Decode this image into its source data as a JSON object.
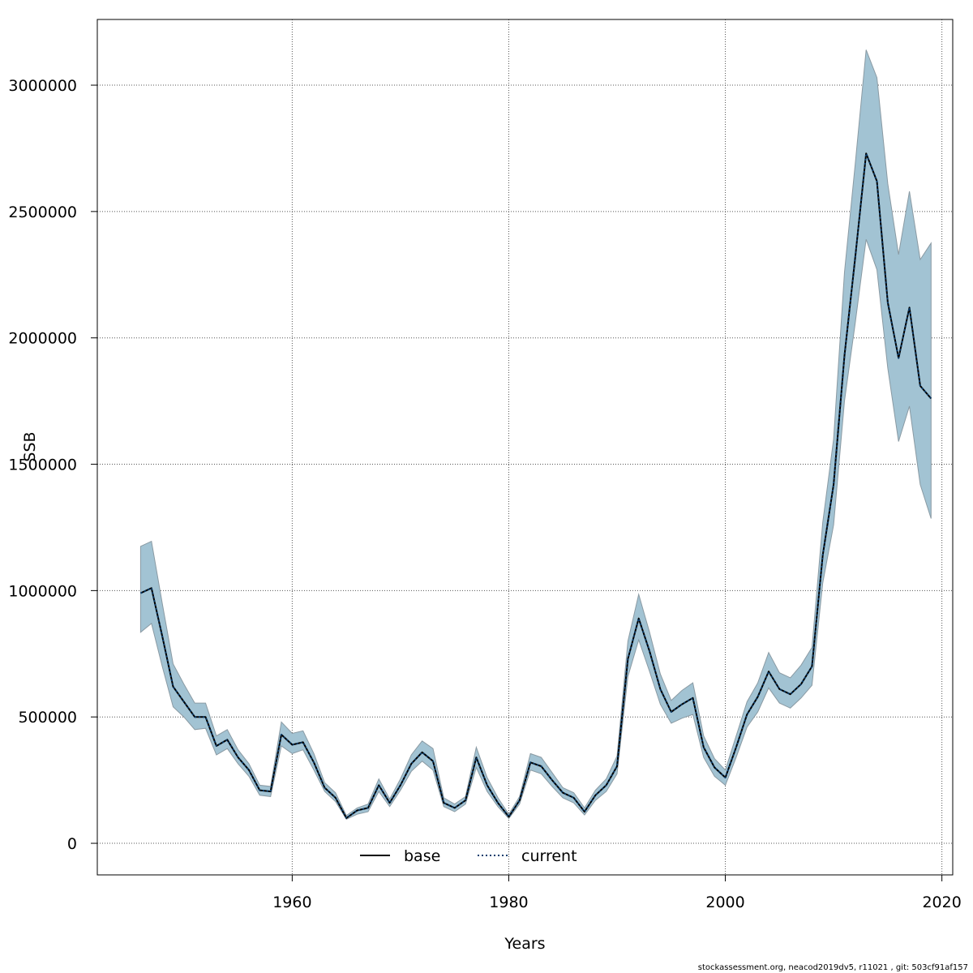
{
  "chart_data": {
    "type": "area",
    "xlabel": "Years",
    "ylabel": "SSB",
    "xlim": [
      1942,
      2021
    ],
    "ylim": [
      -125000,
      3260000
    ],
    "xticks": [
      1960,
      1980,
      2000,
      2020
    ],
    "yticks": [
      0,
      500000,
      1000000,
      1500000,
      2000000,
      2500000,
      3000000
    ],
    "grid": true,
    "legend_position": "bottom-center",
    "colors": {
      "band": "#a2c3d3",
      "band_edge": "#8a9aa3",
      "base": "#000000",
      "current": "#0b3e6e",
      "grid": "#555555"
    },
    "years": [
      1946,
      1947,
      1948,
      1949,
      1950,
      1951,
      1952,
      1953,
      1954,
      1955,
      1956,
      1957,
      1958,
      1959,
      1960,
      1961,
      1962,
      1963,
      1964,
      1965,
      1966,
      1967,
      1968,
      1969,
      1970,
      1971,
      1972,
      1973,
      1974,
      1975,
      1976,
      1977,
      1978,
      1979,
      1980,
      1981,
      1982,
      1983,
      1984,
      1985,
      1986,
      1987,
      1988,
      1989,
      1990,
      1991,
      1992,
      1993,
      1994,
      1995,
      1996,
      1997,
      1998,
      1999,
      2000,
      2001,
      2002,
      2003,
      2004,
      2005,
      2006,
      2007,
      2008,
      2009,
      2010,
      2011,
      2012,
      2013,
      2014,
      2015,
      2016,
      2017,
      2018,
      2019
    ],
    "series": [
      {
        "name": "base",
        "style": "solid",
        "values": [
          990000,
          1010000,
          820000,
          620000,
          560000,
          500000,
          500000,
          385000,
          410000,
          340000,
          290000,
          210000,
          205000,
          430000,
          390000,
          400000,
          320000,
          220000,
          180000,
          100000,
          130000,
          140000,
          230000,
          160000,
          230000,
          315000,
          360000,
          325000,
          160000,
          140000,
          170000,
          340000,
          230000,
          160000,
          105000,
          170000,
          320000,
          305000,
          250000,
          200000,
          180000,
          125000,
          190000,
          230000,
          305000,
          730000,
          890000,
          760000,
          610000,
          520000,
          550000,
          575000,
          380000,
          300000,
          260000,
          380000,
          510000,
          580000,
          680000,
          610000,
          590000,
          630000,
          700000,
          1140000,
          1420000,
          1930000,
          2320000,
          2730000,
          2620000,
          2140000,
          1920000,
          2120000,
          1810000,
          1760000
        ]
      },
      {
        "name": "current",
        "style": "dotted",
        "values": [
          990000,
          1010000,
          820000,
          620000,
          560000,
          500000,
          500000,
          385000,
          410000,
          340000,
          290000,
          210000,
          205000,
          430000,
          390000,
          400000,
          320000,
          220000,
          180000,
          100000,
          130000,
          140000,
          230000,
          160000,
          230000,
          315000,
          360000,
          325000,
          160000,
          140000,
          170000,
          340000,
          230000,
          160000,
          105000,
          170000,
          320000,
          305000,
          250000,
          200000,
          180000,
          125000,
          190000,
          230000,
          305000,
          730000,
          890000,
          760000,
          610000,
          520000,
          550000,
          575000,
          380000,
          300000,
          260000,
          380000,
          510000,
          580000,
          680000,
          610000,
          590000,
          630000,
          700000,
          1140000,
          1420000,
          1930000,
          2320000,
          2730000,
          2620000,
          2140000,
          1920000,
          2120000,
          1810000,
          1760000
        ]
      }
    ],
    "band_lower": [
      835000,
      870000,
      700000,
      540000,
      500000,
      450000,
      455000,
      350000,
      375000,
      315000,
      265000,
      190000,
      185000,
      385000,
      355000,
      370000,
      290000,
      205000,
      165000,
      95000,
      115000,
      125000,
      205000,
      145000,
      210000,
      285000,
      325000,
      290000,
      145000,
      125000,
      155000,
      300000,
      205000,
      145000,
      98000,
      155000,
      290000,
      275000,
      225000,
      180000,
      160000,
      112000,
      170000,
      205000,
      275000,
      660000,
      805000,
      680000,
      550000,
      475000,
      495000,
      510000,
      340000,
      265000,
      230000,
      340000,
      460000,
      520000,
      615000,
      555000,
      535000,
      575000,
      625000,
      1030000,
      1260000,
      1750000,
      2060000,
      2390000,
      2270000,
      1880000,
      1590000,
      1730000,
      1420000,
      1285000
    ],
    "band_upper": [
      1175000,
      1195000,
      950000,
      710000,
      630000,
      555000,
      555000,
      425000,
      450000,
      370000,
      315000,
      230000,
      225000,
      480000,
      435000,
      445000,
      355000,
      240000,
      200000,
      110000,
      140000,
      155000,
      255000,
      175000,
      255000,
      350000,
      405000,
      375000,
      180000,
      155000,
      185000,
      380000,
      260000,
      180000,
      115000,
      185000,
      355000,
      340000,
      280000,
      220000,
      200000,
      140000,
      210000,
      255000,
      345000,
      800000,
      985000,
      835000,
      670000,
      565000,
      605000,
      635000,
      425000,
      335000,
      290000,
      425000,
      560000,
      635000,
      755000,
      675000,
      655000,
      705000,
      775000,
      1270000,
      1600000,
      2260000,
      2690000,
      3140000,
      3030000,
      2610000,
      2330000,
      2580000,
      2310000,
      2375000
    ]
  },
  "legend": {
    "items": [
      {
        "label": "base",
        "style": "solid"
      },
      {
        "label": "current",
        "style": "dotted"
      }
    ]
  },
  "footer": "stockassessment.org, neacod2019dv5, r11021 , git: 503cf91af157"
}
